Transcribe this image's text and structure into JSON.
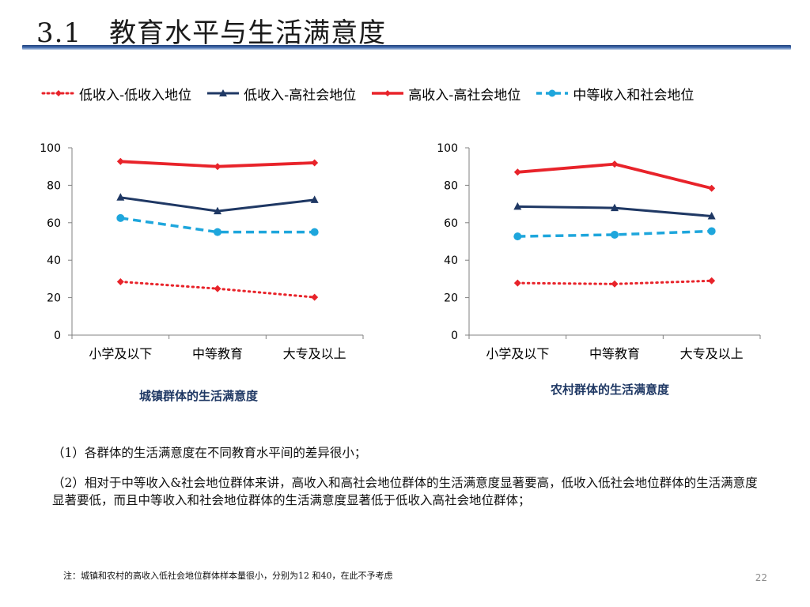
{
  "slide": {
    "title": "3.1　教育水平与生活满意度",
    "page_number": "22"
  },
  "legend": [
    {
      "label": "低收入-低收入地位",
      "color": "#e8232a",
      "style": "dotted",
      "marker": "diamond"
    },
    {
      "label": "低收入-高社会地位",
      "color": "#1f3864",
      "style": "solid",
      "marker": "triangle"
    },
    {
      "label": "高收入-高社会地位",
      "color": "#e8232a",
      "style": "solid",
      "marker": "diamond"
    },
    {
      "label": "中等收入和社会地位",
      "color": "#1ea6dc",
      "style": "dashed",
      "marker": "circle"
    }
  ],
  "chart_data": [
    {
      "type": "line",
      "title": "城镇群体的生活满意度",
      "categories": [
        "小学及以下",
        "中等教育",
        "大专及以上"
      ],
      "ylim": [
        0,
        100
      ],
      "yticks": [
        "0",
        "20",
        "40",
        "60",
        "80",
        "100"
      ],
      "grid": false,
      "legend_position": "top",
      "series": [
        {
          "name": "低收入-低收入地位",
          "values": [
            28.5,
            24.8,
            20.2
          ]
        },
        {
          "name": "低收入-高社会地位",
          "values": [
            73.5,
            66.2,
            72.2
          ]
        },
        {
          "name": "高收入-高社会地位",
          "values": [
            92.7,
            90.0,
            92.0
          ]
        },
        {
          "name": "中等收入和社会地位",
          "values": [
            62.5,
            55.0,
            55.0
          ]
        }
      ]
    },
    {
      "type": "line",
      "title": "农村群体的生活满意度",
      "categories": [
        "小学及以下",
        "中等教育",
        "大专及以上"
      ],
      "ylim": [
        0,
        100
      ],
      "yticks": [
        "0",
        "20",
        "40",
        "60",
        "80",
        "100"
      ],
      "grid": false,
      "legend_position": "top",
      "series": [
        {
          "name": "低收入-低收入地位",
          "values": [
            27.8,
            27.3,
            29.0
          ]
        },
        {
          "name": "低收入-高社会地位",
          "values": [
            68.6,
            67.9,
            63.5
          ]
        },
        {
          "name": "高收入-高社会地位",
          "values": [
            87.0,
            91.3,
            78.4
          ]
        },
        {
          "name": "中等收入和社会地位",
          "values": [
            52.7,
            53.6,
            55.5
          ]
        }
      ]
    }
  ],
  "notes": [
    "（1）各群体的生活满意度在不同教育水平间的差异很小；",
    "（2）相对于中等收入&社会地位群体来讲，高收入和高社会地位群体的生活满意度显著要高，低收入低社会地位群体的生活满意度显著要低，而且中等收入和社会地位群体的生活满意度显著低于低收入高社会地位群体；"
  ],
  "footnote": "注：城镇和农村的高收入低社会地位群体样本量很小，分别为12 和40，在此不予考虑"
}
